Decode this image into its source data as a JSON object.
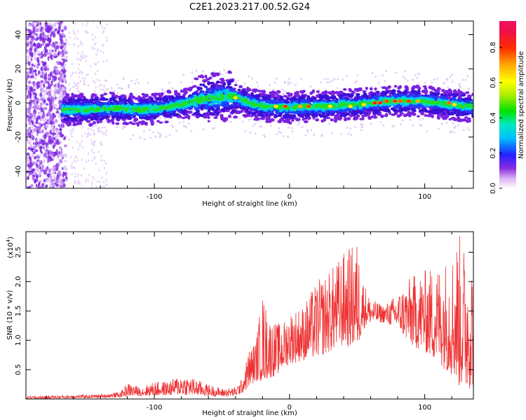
{
  "title": "C2E1.2023.217.00.52.G24",
  "chart_data": [
    {
      "type": "heatmap",
      "xlabel": "Height of straight line (km)",
      "ylabel": "Frequency (Hz)",
      "xlim": [
        -195,
        136
      ],
      "ylim": [
        -50,
        48
      ],
      "x_ticks": [
        -100,
        0,
        100
      ],
      "x_tick_labels": [
        "-100",
        "0",
        "100"
      ],
      "y_ticks": [
        -40,
        -20,
        0,
        20,
        40
      ],
      "y_tick_labels": [
        "-40",
        "-20",
        "0",
        "20",
        "40"
      ],
      "colorbar": {
        "label": "Normalized spectral amplitude",
        "range": [
          0,
          0.95
        ],
        "ticks": [
          0.0,
          0.2,
          0.4,
          0.6,
          0.8
        ],
        "tick_labels": [
          "0.0",
          "0.2",
          "0.4",
          "0.6",
          "0.8"
        ]
      },
      "ridge": {
        "x": [
          -168,
          -150,
          -130,
          -110,
          -95,
          -80,
          -65,
          -55,
          -45,
          -38,
          -30,
          -20,
          -10,
          0,
          10,
          20,
          30,
          40,
          50,
          60,
          70,
          80,
          90,
          100,
          110,
          120,
          136
        ],
        "frequency": [
          -4,
          -4,
          -3,
          -4,
          -3,
          -1,
          2,
          3,
          4,
          3,
          0,
          -2,
          -2,
          -3,
          -2,
          -2,
          -2,
          -1,
          -1,
          0,
          1,
          1,
          1,
          1,
          0,
          -1,
          -2
        ]
      }
    },
    {
      "type": "line",
      "xlabel": "Height of straight line (km)",
      "ylabel": "SNR (10 * v/v)",
      "scale_label": "(x10",
      "scale_exp": "4",
      "xlim": [
        -195,
        136
      ],
      "ylim": [
        0,
        2.85
      ],
      "x_ticks": [
        -100,
        0,
        100
      ],
      "x_tick_labels": [
        "-100",
        "0",
        "100"
      ],
      "y_ticks": [
        0.5,
        1.0,
        1.5,
        2.0,
        2.5
      ],
      "y_tick_labels": [
        "0.5",
        "1.0",
        "1.5",
        "2.0",
        "2.5"
      ],
      "series": [
        {
          "color": "#ee3333",
          "envelope": {
            "x": [
              -195,
              -140,
              -125,
              -120,
              -110,
              -100,
              -90,
              -80,
              -70,
              -60,
              -50,
              -40,
              -35,
              -30,
              -25,
              -20,
              -15,
              -10,
              -5,
              0,
              10,
              20,
              30,
              40,
              50,
              55,
              60,
              70,
              80,
              90,
              100,
              110,
              120,
              125,
              130,
              136
            ],
            "low": [
              0.0,
              0.02,
              0.03,
              0.05,
              0.05,
              0.05,
              0.06,
              0.07,
              0.06,
              0.05,
              0.04,
              0.05,
              0.1,
              0.2,
              0.3,
              0.3,
              0.35,
              0.4,
              0.5,
              0.6,
              0.65,
              0.7,
              0.8,
              0.9,
              0.85,
              1.2,
              1.3,
              1.3,
              1.2,
              0.9,
              0.8,
              0.6,
              0.4,
              0.2,
              0.15,
              0.2
            ],
            "high": [
              0.05,
              0.08,
              0.12,
              0.28,
              0.2,
              0.3,
              0.3,
              0.42,
              0.35,
              0.25,
              0.18,
              0.2,
              0.35,
              0.85,
              1.0,
              1.8,
              1.4,
              1.3,
              1.3,
              1.5,
              1.6,
              2.0,
              2.2,
              2.5,
              2.7,
              2.0,
              1.7,
              1.6,
              1.8,
              2.1,
              2.2,
              2.3,
              2.5,
              2.85,
              2.6,
              2.4
            ]
          }
        }
      ]
    }
  ]
}
